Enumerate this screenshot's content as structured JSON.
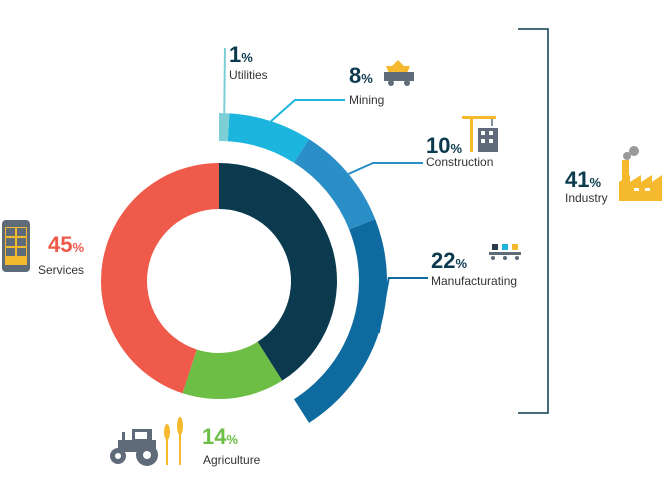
{
  "chart_data": {
    "type": "pie",
    "slices": [
      {
        "category": "Industry",
        "value": 41,
        "pct_label": "41",
        "label": "Industry",
        "color": "#0b3a4e"
      },
      {
        "category": "Agriculture",
        "value": 14,
        "pct_label": "14",
        "label": "Agriculture",
        "color": "#6dbe45"
      },
      {
        "category": "Services",
        "value": 45,
        "pct_label": "45",
        "label": "Services",
        "color": "#ef5a4a"
      }
    ],
    "industry_breakdown": [
      {
        "label": "Utilities",
        "value": 1,
        "pct_label": "1",
        "color": "#7ccfd6"
      },
      {
        "label": "Mining",
        "value": 8,
        "pct_label": "8",
        "color": "#1bb5de"
      },
      {
        "label": "Construction",
        "value": 10,
        "pct_label": "10",
        "color": "#2a8ec7"
      },
      {
        "label": "Manufacturating",
        "value": 22,
        "pct_label": "22",
        "color": "#0f6aa0"
      }
    ],
    "percent_sign": "%"
  },
  "icons": {
    "utilities": "bolt-icon",
    "mining": "mine-cart-icon",
    "construction": "crane-building-icon",
    "manufacturing": "conveyor-icon",
    "industry": "factory-icon",
    "services": "phone-apps-icon",
    "agriculture": "tractor-wheat-icon"
  }
}
